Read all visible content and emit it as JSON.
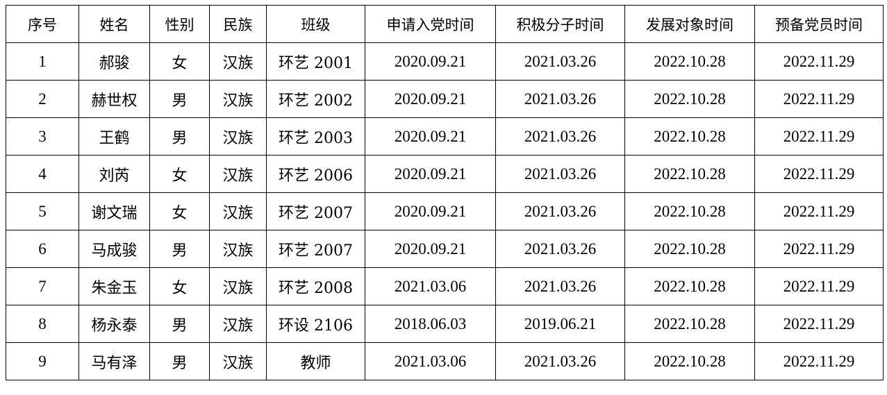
{
  "headers": [
    "序号",
    "姓名",
    "性别",
    "民族",
    "班级",
    "申请入党时间",
    "积极分子时间",
    "发展对象时间",
    "预备党员时间"
  ],
  "rows": [
    [
      "1",
      "郝骏",
      "女",
      "汉族",
      "环艺 2001",
      "2020.09.21",
      "2021.03.26",
      "2022.10.28",
      "2022.11.29"
    ],
    [
      "2",
      "赫世权",
      "男",
      "汉族",
      "环艺 2002",
      "2020.09.21",
      "2021.03.26",
      "2022.10.28",
      "2022.11.29"
    ],
    [
      "3",
      "王鹤",
      "男",
      "汉族",
      "环艺 2003",
      "2020.09.21",
      "2021.03.26",
      "2022.10.28",
      "2022.11.29"
    ],
    [
      "4",
      "刘芮",
      "女",
      "汉族",
      "环艺 2006",
      "2020.09.21",
      "2021.03.26",
      "2022.10.28",
      "2022.11.29"
    ],
    [
      "5",
      "谢文瑞",
      "女",
      "汉族",
      "环艺 2007",
      "2020.09.21",
      "2021.03.26",
      "2022.10.28",
      "2022.11.29"
    ],
    [
      "6",
      "马成骏",
      "男",
      "汉族",
      "环艺 2007",
      "2020.09.21",
      "2021.03.26",
      "2022.10.28",
      "2022.11.29"
    ],
    [
      "7",
      "朱金玉",
      "女",
      "汉族",
      "环艺 2008",
      "2021.03.06",
      "2021.03.26",
      "2022.10.28",
      "2022.11.29"
    ],
    [
      "8",
      "杨永泰",
      "男",
      "汉族",
      "环设 2106",
      "2018.06.03",
      "2019.06.21",
      "2022.10.28",
      "2022.11.29"
    ],
    [
      "9",
      "马有泽",
      "男",
      "汉族",
      "教师",
      "2021.03.06",
      "2021.03.26",
      "2022.10.28",
      "2022.11.29"
    ]
  ]
}
